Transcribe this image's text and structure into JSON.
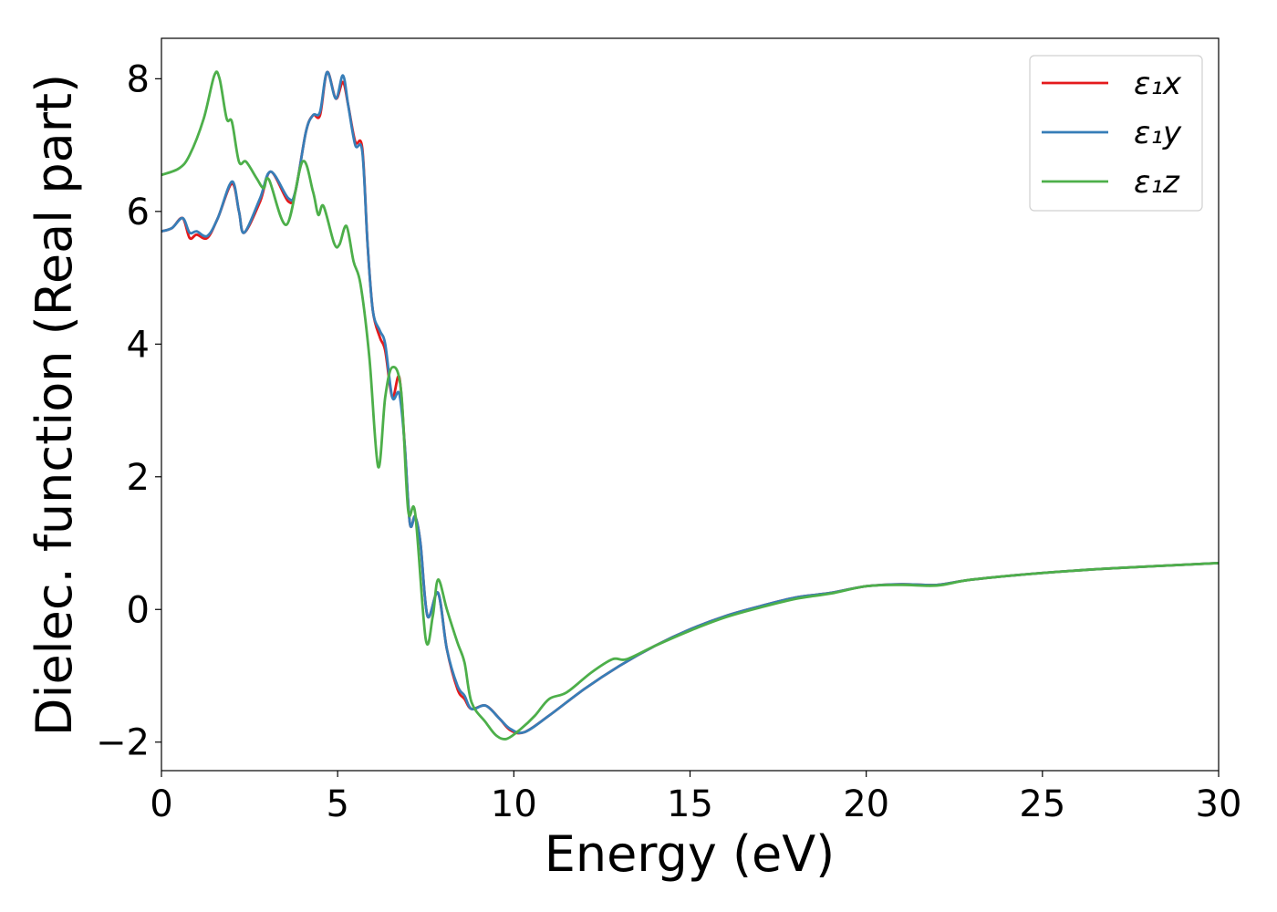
{
  "chart_data": {
    "type": "line",
    "title": "",
    "xlabel": "Energy (eV)",
    "ylabel": "Dielec. function (Real part)",
    "xlim": [
      0,
      30
    ],
    "ylim": [
      -2.43,
      8.61
    ],
    "xticks": [
      0,
      5,
      10,
      15,
      20,
      25,
      30
    ],
    "xtick_labels": [
      "0",
      "5",
      "10",
      "15",
      "20",
      "25",
      "30"
    ],
    "yticks": [
      -2,
      0,
      2,
      4,
      6,
      8
    ],
    "ytick_labels": [
      "−2",
      "0",
      "2",
      "4",
      "6",
      "8"
    ],
    "grid": false,
    "legend_position": "top-right",
    "series": [
      {
        "name": "ε₁x",
        "color": "#e41a1c",
        "x": [
          0,
          0.3,
          0.6,
          0.8,
          1.0,
          1.3,
          1.6,
          2.0,
          2.2,
          2.35,
          2.8,
          3.1,
          3.6,
          3.8,
          4.1,
          4.3,
          4.5,
          4.7,
          4.95,
          5.15,
          5.3,
          5.5,
          5.7,
          5.85,
          6.0,
          6.2,
          6.35,
          6.55,
          6.75,
          6.9,
          7.05,
          7.2,
          7.35,
          7.55,
          7.85,
          8.1,
          8.4,
          8.6,
          8.8,
          9.2,
          9.6,
          9.9,
          10.3,
          11,
          12,
          13,
          14,
          15,
          16,
          17,
          18,
          19,
          20,
          21,
          22,
          23,
          25,
          27,
          30
        ],
        "y": [
          5.7,
          5.75,
          5.9,
          5.6,
          5.65,
          5.6,
          5.9,
          6.42,
          6.0,
          5.68,
          6.15,
          6.6,
          6.15,
          6.3,
          7.2,
          7.45,
          7.45,
          8.1,
          7.7,
          7.95,
          7.6,
          7.05,
          6.95,
          5.5,
          4.5,
          4.1,
          3.9,
          3.2,
          3.5,
          2.5,
          1.3,
          1.4,
          1.0,
          -0.1,
          0.25,
          -0.6,
          -1.2,
          -1.35,
          -1.5,
          -1.45,
          -1.65,
          -1.82,
          -1.85,
          -1.6,
          -1.2,
          -0.85,
          -0.55,
          -0.3,
          -0.1,
          0.05,
          0.18,
          0.25,
          0.35,
          0.38,
          0.37,
          0.45,
          0.55,
          0.62,
          0.7
        ]
      },
      {
        "name": "ε₁y",
        "color": "#377eb8",
        "x": [
          0,
          0.3,
          0.6,
          0.8,
          1.0,
          1.3,
          1.6,
          2.0,
          2.2,
          2.35,
          2.8,
          3.1,
          3.6,
          3.8,
          4.1,
          4.3,
          4.5,
          4.7,
          4.95,
          5.15,
          5.3,
          5.5,
          5.7,
          5.85,
          6.0,
          6.2,
          6.35,
          6.55,
          6.75,
          6.9,
          7.05,
          7.2,
          7.35,
          7.55,
          7.85,
          8.1,
          8.4,
          8.6,
          8.8,
          9.2,
          9.6,
          9.9,
          10.3,
          11,
          12,
          13,
          14,
          15,
          16,
          17,
          18,
          19,
          20,
          21,
          22,
          23,
          25,
          27,
          30
        ],
        "y": [
          5.7,
          5.75,
          5.9,
          5.68,
          5.7,
          5.63,
          5.9,
          6.45,
          6.0,
          5.68,
          6.2,
          6.6,
          6.2,
          6.3,
          7.2,
          7.45,
          7.5,
          8.1,
          7.7,
          8.05,
          7.6,
          7.0,
          6.9,
          5.5,
          4.5,
          4.2,
          4.0,
          3.2,
          3.25,
          2.5,
          1.3,
          1.4,
          1.0,
          -0.1,
          0.25,
          -0.6,
          -1.15,
          -1.3,
          -1.5,
          -1.45,
          -1.65,
          -1.8,
          -1.85,
          -1.6,
          -1.2,
          -0.85,
          -0.55,
          -0.3,
          -0.1,
          0.05,
          0.18,
          0.25,
          0.35,
          0.38,
          0.37,
          0.45,
          0.55,
          0.62,
          0.7
        ]
      },
      {
        "name": "ε₁z",
        "color": "#4daf4a",
        "x": [
          0,
          0.5,
          0.8,
          1.2,
          1.5,
          1.65,
          1.85,
          2.0,
          2.2,
          2.4,
          2.7,
          2.9,
          3.05,
          3.55,
          4.0,
          4.3,
          4.45,
          4.6,
          4.9,
          5.05,
          5.25,
          5.45,
          5.65,
          5.9,
          6.15,
          6.35,
          6.55,
          6.8,
          7.0,
          7.2,
          7.5,
          7.7,
          7.85,
          8.1,
          8.4,
          8.6,
          8.8,
          9.2,
          9.5,
          9.8,
          10.2,
          10.6,
          11,
          11.5,
          12.2,
          12.8,
          13.2,
          14,
          15,
          16,
          17,
          18,
          19,
          20,
          21,
          22,
          23,
          25,
          27,
          30
        ],
        "y": [
          6.55,
          6.65,
          6.85,
          7.4,
          8.05,
          8.0,
          7.4,
          7.35,
          6.75,
          6.75,
          6.5,
          6.35,
          6.48,
          5.8,
          6.75,
          6.3,
          5.95,
          6.08,
          5.52,
          5.5,
          5.78,
          5.25,
          4.9,
          3.8,
          2.15,
          3.2,
          3.65,
          3.3,
          1.5,
          1.45,
          -0.45,
          -0.1,
          0.45,
          0.0,
          -0.5,
          -0.8,
          -1.4,
          -1.7,
          -1.9,
          -1.95,
          -1.8,
          -1.6,
          -1.35,
          -1.25,
          -0.95,
          -0.75,
          -0.75,
          -0.55,
          -0.32,
          -0.12,
          0.03,
          0.16,
          0.24,
          0.35,
          0.37,
          0.36,
          0.45,
          0.55,
          0.62,
          0.7
        ]
      }
    ]
  }
}
